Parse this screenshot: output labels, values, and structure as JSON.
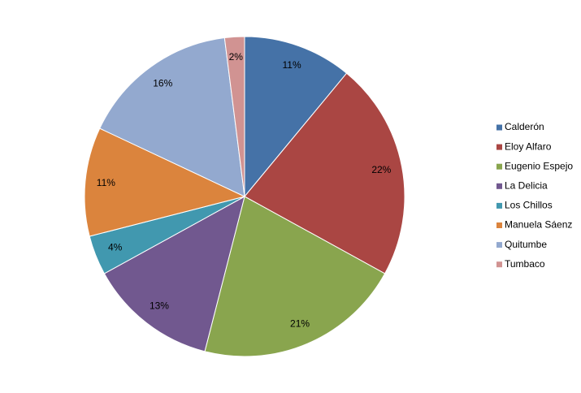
{
  "chart_data": {
    "type": "pie",
    "categories": [
      "Calderón",
      "Eloy Alfaro",
      "Eugenio Espejo",
      "La Delicia",
      "Los Chillos",
      "Manuela Sáenz",
      "Quitumbe",
      "Tumbaco"
    ],
    "values": [
      11,
      22,
      21,
      13,
      4,
      11,
      16,
      2
    ],
    "value_labels": [
      "11%",
      "22%",
      "21%",
      "13%",
      "4%",
      "11%",
      "16%",
      "2%"
    ],
    "colors": [
      "#4572a7",
      "#aa4643",
      "#89a54e",
      "#71588f",
      "#4198af",
      "#db843d",
      "#93a9cf",
      "#d19392"
    ],
    "legend": "right"
  }
}
